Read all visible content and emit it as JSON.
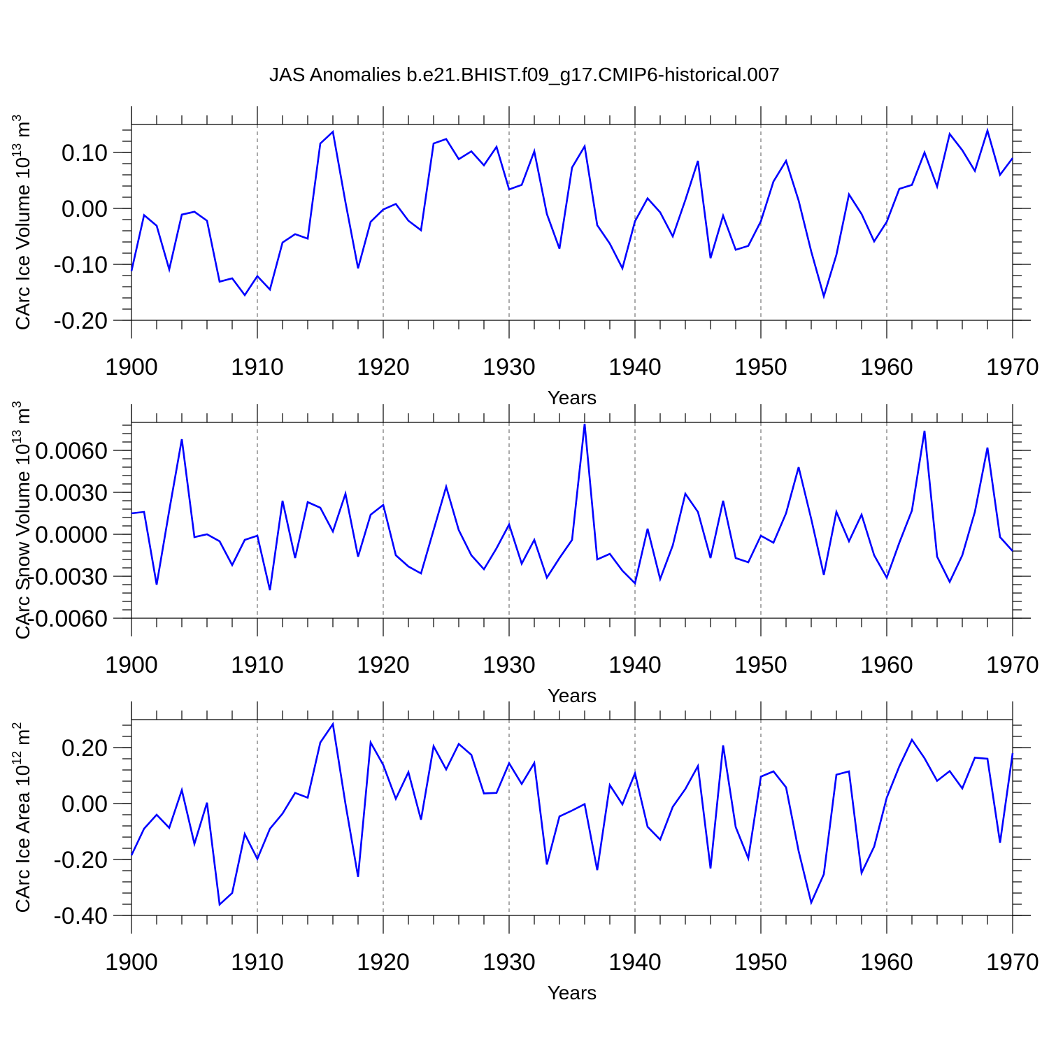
{
  "figure_title": "JAS Anomalies b.e21.BHIST.f09_g17.CMIP6-historical.007",
  "colors": {
    "line": "#0000ff",
    "axes": "#000000",
    "grid": "#555555",
    "background": "#ffffff"
  },
  "chart_data": [
    {
      "type": "line",
      "ylabel": "CArc Ice Volume 10",
      "ylabel_exp": "13",
      "ylabel_unit": "m",
      "ylabel_unit_exp": "3",
      "xlabel": "Years",
      "xlim": [
        1900,
        1970
      ],
      "ylim": [
        -0.2,
        0.15
      ],
      "grid_x": true,
      "x_ticks": [
        1900,
        1910,
        1920,
        1930,
        1940,
        1950,
        1960,
        1970
      ],
      "x_tick_labels": [
        "1900",
        "1910",
        "1920",
        "1930",
        "1940",
        "1950",
        "1960",
        "1970"
      ],
      "y_ticks": [
        -0.2,
        -0.1,
        0.0,
        0.1
      ],
      "y_tick_labels": [
        "-0.20",
        "-0.10",
        "0.00",
        "0.10"
      ],
      "y_minor_step": 0.02,
      "x": [
        1900,
        1901,
        1902,
        1903,
        1904,
        1905,
        1906,
        1907,
        1908,
        1909,
        1910,
        1911,
        1912,
        1913,
        1914,
        1915,
        1916,
        1917,
        1918,
        1919,
        1920,
        1921,
        1922,
        1923,
        1924,
        1925,
        1926,
        1927,
        1928,
        1929,
        1930,
        1931,
        1932,
        1933,
        1934,
        1935,
        1936,
        1937,
        1938,
        1939,
        1940,
        1941,
        1942,
        1943,
        1944,
        1945,
        1946,
        1947,
        1948,
        1949,
        1950,
        1951,
        1952,
        1953,
        1954,
        1955,
        1956,
        1957,
        1958,
        1959,
        1960,
        1961,
        1962,
        1963,
        1964,
        1965,
        1966,
        1967,
        1968,
        1969,
        1970
      ],
      "series": [
        {
          "name": "CArc Ice Volume",
          "values": [
            -0.112,
            -0.012,
            -0.031,
            -0.109,
            -0.011,
            -0.006,
            -0.022,
            -0.131,
            -0.125,
            -0.155,
            -0.121,
            -0.145,
            -0.061,
            -0.046,
            -0.054,
            0.116,
            0.137,
            0.011,
            -0.107,
            -0.024,
            -0.002,
            0.008,
            -0.022,
            -0.039,
            0.116,
            0.124,
            0.088,
            0.102,
            0.077,
            0.11,
            0.034,
            0.042,
            0.102,
            -0.01,
            -0.072,
            0.073,
            0.111,
            -0.03,
            -0.063,
            -0.107,
            -0.023,
            0.018,
            -0.007,
            -0.05,
            0.015,
            0.085,
            -0.089,
            -0.013,
            -0.074,
            -0.067,
            -0.023,
            0.048,
            0.085,
            0.014,
            -0.077,
            -0.157,
            -0.083,
            0.025,
            -0.01,
            -0.059,
            -0.024,
            0.035,
            0.042,
            0.1,
            0.039,
            0.133,
            0.104,
            0.067,
            0.139,
            0.06,
            0.09
          ]
        }
      ]
    },
    {
      "type": "line",
      "ylabel": "CArc Snow Volume 10",
      "ylabel_exp": "13",
      "ylabel_unit": "m",
      "ylabel_unit_exp": "3",
      "xlabel": "Years",
      "xlim": [
        1900,
        1970
      ],
      "ylim": [
        -0.006,
        0.008
      ],
      "grid_x": true,
      "x_ticks": [
        1900,
        1910,
        1920,
        1930,
        1940,
        1950,
        1960,
        1970
      ],
      "x_tick_labels": [
        "1900",
        "1910",
        "1920",
        "1930",
        "1940",
        "1950",
        "1960",
        "1970"
      ],
      "y_ticks": [
        -0.006,
        -0.003,
        0.0,
        0.003,
        0.006
      ],
      "y_tick_labels": [
        "-0.0060",
        "-0.0030",
        "0.0000",
        "0.0030",
        "0.0060"
      ],
      "y_minor_step": 0.0006,
      "x": [
        1900,
        1901,
        1902,
        1903,
        1904,
        1905,
        1906,
        1907,
        1908,
        1909,
        1910,
        1911,
        1912,
        1913,
        1914,
        1915,
        1916,
        1917,
        1918,
        1919,
        1920,
        1921,
        1922,
        1923,
        1924,
        1925,
        1926,
        1927,
        1928,
        1929,
        1930,
        1931,
        1932,
        1933,
        1934,
        1935,
        1936,
        1937,
        1938,
        1939,
        1940,
        1941,
        1942,
        1943,
        1944,
        1945,
        1946,
        1947,
        1948,
        1949,
        1950,
        1951,
        1952,
        1953,
        1954,
        1955,
        1956,
        1957,
        1958,
        1959,
        1960,
        1961,
        1962,
        1963,
        1964,
        1965,
        1966,
        1967,
        1968,
        1969,
        1970
      ],
      "series": [
        {
          "name": "CArc Snow Volume",
          "values": [
            0.0015,
            0.0016,
            -0.0036,
            0.0017,
            0.0068,
            -0.0002,
            0.0,
            -0.0005,
            -0.0022,
            -0.0004,
            -0.0001,
            -0.004,
            0.0024,
            -0.0017,
            0.0023,
            0.0019,
            0.0002,
            0.0029,
            -0.0016,
            0.0014,
            0.0021,
            -0.0015,
            -0.0023,
            -0.0028,
            0.0003,
            0.0034,
            0.0003,
            -0.0015,
            -0.0025,
            -0.001,
            0.0007,
            -0.0021,
            -0.0004,
            -0.0031,
            -0.0017,
            -0.0004,
            0.0079,
            -0.0018,
            -0.0014,
            -0.0026,
            -0.0035,
            0.0004,
            -0.0032,
            -0.0008,
            0.0029,
            0.0016,
            -0.0017,
            0.0024,
            -0.0017,
            -0.002,
            -0.0001,
            -0.0006,
            0.0015,
            0.0048,
            0.0011,
            -0.0029,
            0.0016,
            -0.0005,
            0.0014,
            -0.0015,
            -0.0031,
            -0.0006,
            0.0017,
            0.0074,
            -0.0016,
            -0.0034,
            -0.0015,
            0.0016,
            0.0062,
            -0.0002,
            -0.0012
          ]
        }
      ]
    },
    {
      "type": "line",
      "ylabel": "CArc Ice Area 10",
      "ylabel_exp": "12",
      "ylabel_unit": "m",
      "ylabel_unit_exp": "2",
      "xlabel": "Years",
      "xlim": [
        1900,
        1970
      ],
      "ylim": [
        -0.4,
        0.3
      ],
      "grid_x": true,
      "x_ticks": [
        1900,
        1910,
        1920,
        1930,
        1940,
        1950,
        1960,
        1970
      ],
      "x_tick_labels": [
        "1900",
        "1910",
        "1920",
        "1930",
        "1940",
        "1950",
        "1960",
        "1970"
      ],
      "y_ticks": [
        -0.4,
        -0.2,
        0.0,
        0.2
      ],
      "y_tick_labels": [
        "-0.40",
        "-0.20",
        "0.00",
        "0.20"
      ],
      "y_minor_step": 0.04,
      "x": [
        1900,
        1901,
        1902,
        1903,
        1904,
        1905,
        1906,
        1907,
        1908,
        1909,
        1910,
        1911,
        1912,
        1913,
        1914,
        1915,
        1916,
        1917,
        1918,
        1919,
        1920,
        1921,
        1922,
        1923,
        1924,
        1925,
        1926,
        1927,
        1928,
        1929,
        1930,
        1931,
        1932,
        1933,
        1934,
        1935,
        1936,
        1937,
        1938,
        1939,
        1940,
        1941,
        1942,
        1943,
        1944,
        1945,
        1946,
        1947,
        1948,
        1949,
        1950,
        1951,
        1952,
        1953,
        1954,
        1955,
        1956,
        1957,
        1958,
        1959,
        1960,
        1961,
        1962,
        1963,
        1964,
        1965,
        1966,
        1967,
        1968,
        1969,
        1970
      ],
      "series": [
        {
          "name": "CArc Ice Area",
          "values": [
            -0.185,
            -0.09,
            -0.04,
            -0.087,
            0.048,
            -0.144,
            0.003,
            -0.361,
            -0.32,
            -0.109,
            -0.198,
            -0.09,
            -0.036,
            0.038,
            0.021,
            0.218,
            0.284,
            -0.001,
            -0.262,
            0.218,
            0.138,
            0.017,
            0.112,
            -0.058,
            0.205,
            0.122,
            0.213,
            0.174,
            0.036,
            0.038,
            0.144,
            0.07,
            0.145,
            -0.218,
            -0.046,
            -0.025,
            -0.002,
            -0.238,
            0.066,
            -0.003,
            0.108,
            -0.083,
            -0.129,
            -0.012,
            0.052,
            0.134,
            -0.232,
            0.208,
            -0.084,
            -0.196,
            0.096,
            0.115,
            0.058,
            -0.17,
            -0.354,
            -0.253,
            0.103,
            0.115,
            -0.248,
            -0.154,
            0.021,
            0.133,
            0.228,
            0.162,
            0.081,
            0.116,
            0.054,
            0.164,
            0.16,
            -0.14,
            0.18
          ]
        }
      ]
    }
  ]
}
